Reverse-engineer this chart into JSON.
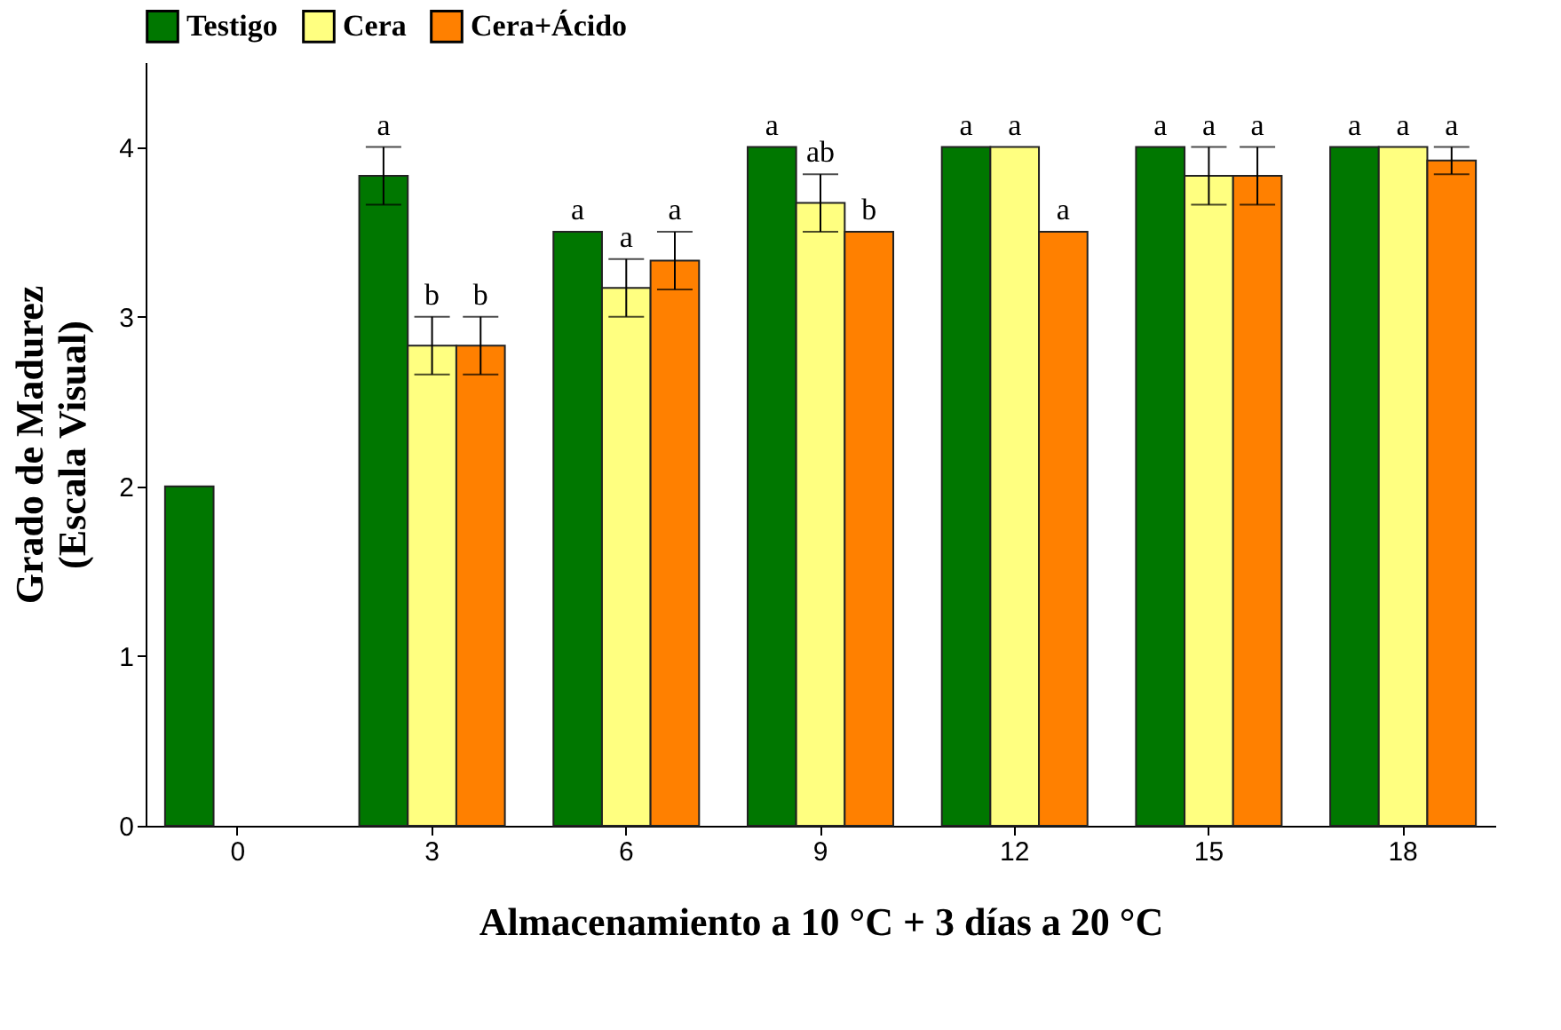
{
  "chart_data": {
    "type": "bar",
    "xlabel": "Almacenamiento a 10 °C + 3 días a 20 °C",
    "ylabel": "Grado de Madurez\n(Escala Visual)",
    "categories": [
      "0",
      "3",
      "6",
      "9",
      "12",
      "15",
      "18"
    ],
    "series": [
      {
        "name": "Testigo",
        "color": "#007700",
        "values": [
          2,
          3.83,
          3.5,
          4,
          4,
          4,
          4
        ],
        "errors": [
          null,
          0.17,
          null,
          null,
          null,
          null,
          null
        ],
        "value_labels": [
          null,
          "a",
          "a",
          "a",
          "a",
          "a",
          "a"
        ]
      },
      {
        "name": "Cera",
        "color": "#ffff80",
        "values": [
          null,
          2.83,
          3.17,
          3.67,
          4,
          3.83,
          4
        ],
        "errors": [
          null,
          0.17,
          0.17,
          0.17,
          null,
          0.17,
          null
        ],
        "value_labels": [
          null,
          "b",
          "a",
          "ab",
          "a",
          "a",
          "a"
        ]
      },
      {
        "name": "Cera+Ácido",
        "color": "#ff8000",
        "values": [
          null,
          2.83,
          3.33,
          3.5,
          3.5,
          3.83,
          3.92
        ],
        "errors": [
          null,
          0.17,
          0.17,
          null,
          null,
          0.17,
          0.08
        ],
        "value_labels": [
          null,
          "b",
          "a",
          "b",
          "a",
          "a",
          "a"
        ]
      }
    ],
    "ylim": [
      0,
      4.5
    ],
    "yticks": [
      0,
      1,
      2,
      3,
      4
    ],
    "grid": false,
    "legend": "top left"
  }
}
